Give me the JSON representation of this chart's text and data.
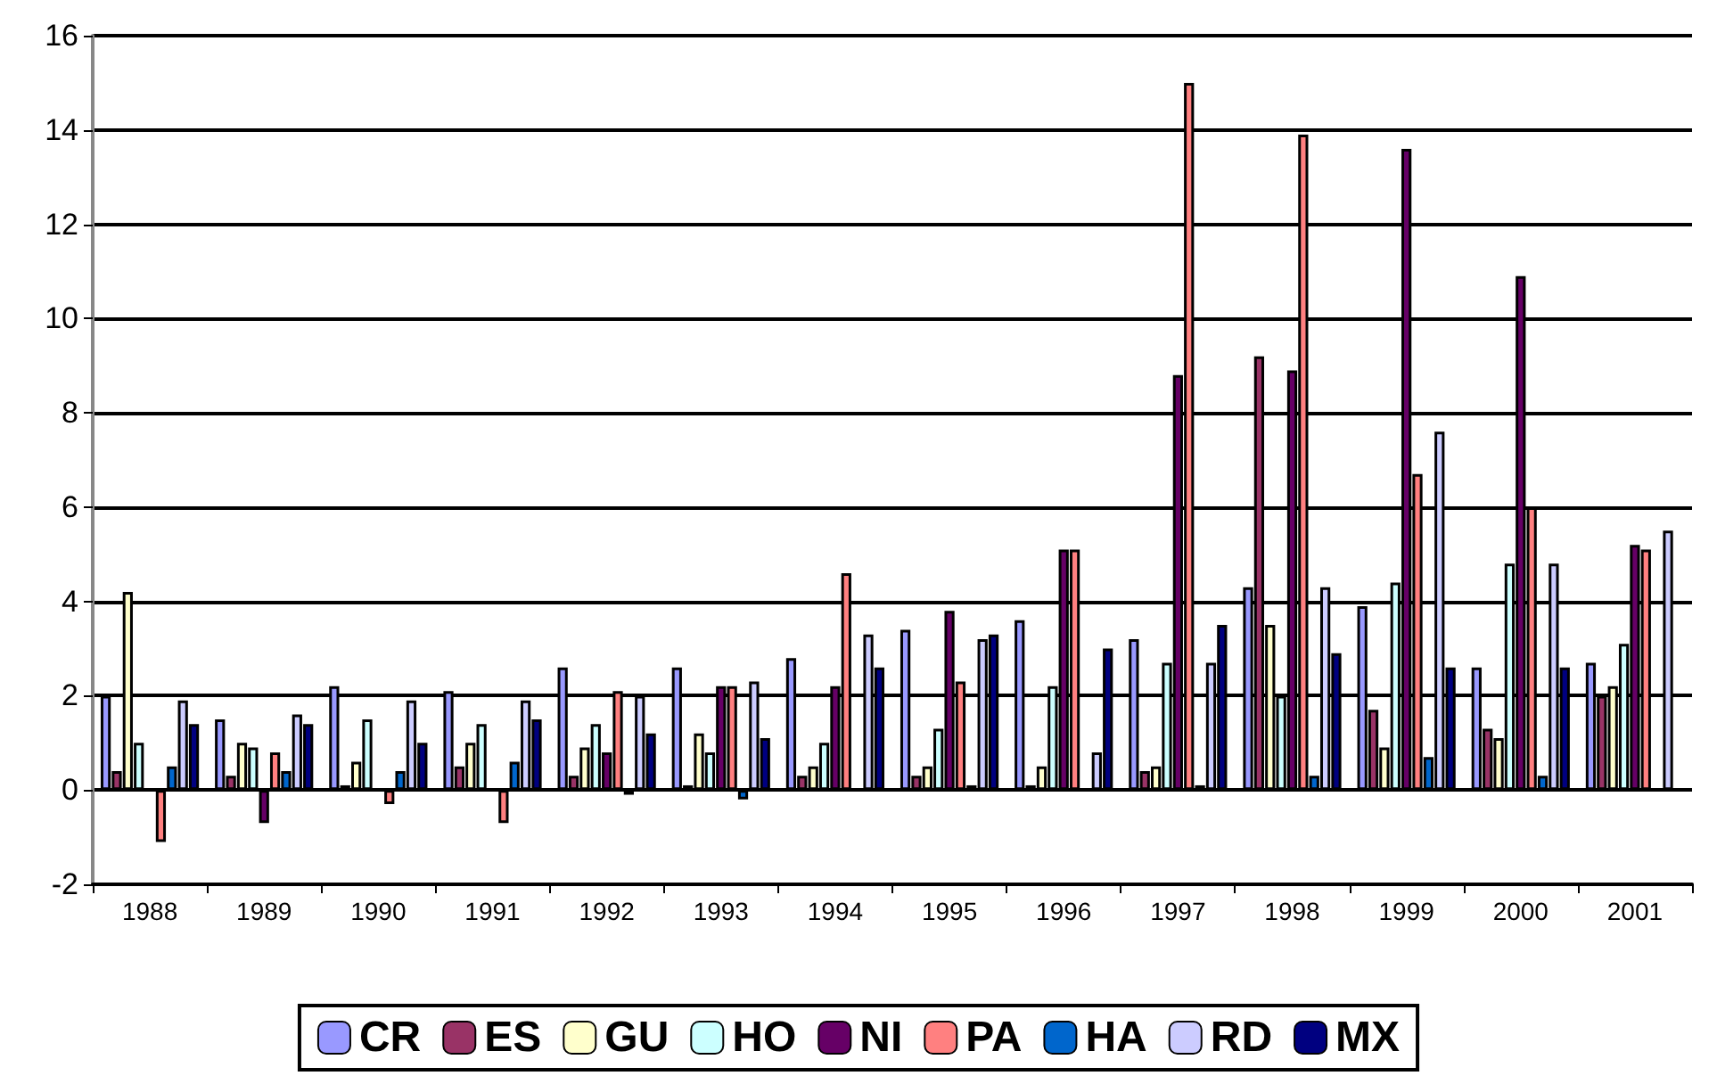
{
  "chart_data": {
    "type": "bar",
    "categories": [
      "1988",
      "1989",
      "1990",
      "1991",
      "1992",
      "1993",
      "1994",
      "1995",
      "1996",
      "1997",
      "1998",
      "1999",
      "2000",
      "2001"
    ],
    "series": [
      {
        "name": "CR",
        "color": "#9999ff",
        "values": [
          2.0,
          1.5,
          2.2,
          2.1,
          2.6,
          2.6,
          2.8,
          3.4,
          3.6,
          3.2,
          4.3,
          3.9,
          2.6,
          2.7
        ]
      },
      {
        "name": "ES",
        "color": "#993366",
        "values": [
          0.4,
          0.3,
          0.1,
          0.5,
          0.3,
          0.1,
          0.3,
          0.3,
          0.1,
          0.4,
          9.2,
          1.7,
          1.3,
          2.0
        ]
      },
      {
        "name": "GU",
        "color": "#ffffcc",
        "values": [
          4.2,
          1.0,
          0.6,
          1.0,
          0.9,
          1.2,
          0.5,
          0.5,
          0.5,
          0.5,
          3.5,
          0.9,
          1.1,
          2.2
        ]
      },
      {
        "name": "HO",
        "color": "#ccffff",
        "values": [
          1.0,
          0.9,
          1.5,
          1.4,
          1.4,
          0.8,
          1.0,
          1.3,
          2.2,
          2.7,
          2.0,
          4.4,
          4.8,
          3.1
        ]
      },
      {
        "name": "NI",
        "color": "#660066",
        "values": [
          0,
          -0.7,
          0,
          0,
          0.8,
          2.2,
          2.2,
          3.8,
          5.1,
          8.8,
          8.9,
          13.6,
          10.9,
          5.2
        ]
      },
      {
        "name": "PA",
        "color": "#ff8080",
        "values": [
          -1.1,
          0.8,
          -0.3,
          -0.7,
          2.1,
          2.2,
          4.6,
          2.3,
          5.1,
          15.0,
          13.9,
          6.7,
          6.0,
          5.1
        ]
      },
      {
        "name": "HA",
        "color": "#0066cc",
        "values": [
          0.5,
          0.4,
          0.4,
          0.6,
          -0.1,
          -0.2,
          0,
          0.1,
          0,
          0.1,
          0.3,
          0.7,
          0.3,
          0
        ]
      },
      {
        "name": "RD",
        "color": "#ccccff",
        "values": [
          1.9,
          1.6,
          1.9,
          1.9,
          2.0,
          2.3,
          3.3,
          3.2,
          0.8,
          2.7,
          4.3,
          7.6,
          4.8,
          5.5
        ]
      },
      {
        "name": "MX",
        "color": "#000080",
        "values": [
          1.4,
          1.4,
          1.0,
          1.5,
          1.2,
          1.1,
          2.6,
          3.3,
          3.0,
          3.5,
          2.9,
          2.6,
          2.6,
          null
        ]
      }
    ],
    "ylim": [
      -2,
      16
    ],
    "yticks": [
      -2,
      0,
      2,
      4,
      6,
      8,
      10,
      12,
      14,
      16
    ],
    "grid": "y",
    "legend": "bottom"
  }
}
